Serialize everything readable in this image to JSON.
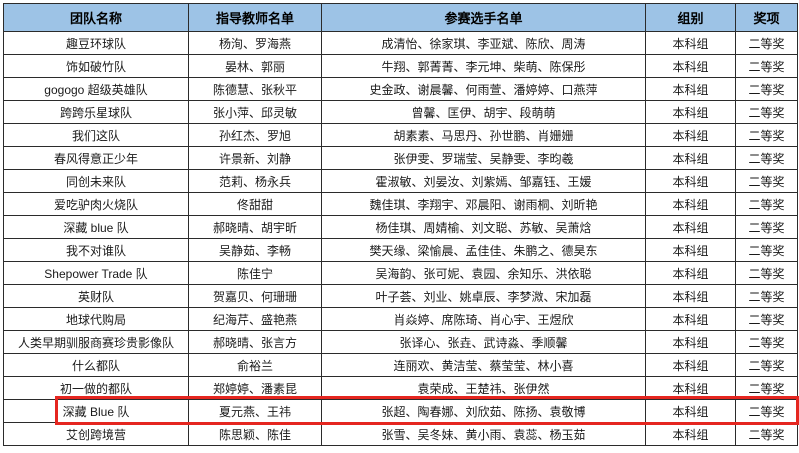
{
  "table": {
    "columns": [
      {
        "key": "team",
        "label": "团队名称"
      },
      {
        "key": "teachers",
        "label": "指导教师名单"
      },
      {
        "key": "participants",
        "label": "参赛选手名单"
      },
      {
        "key": "group",
        "label": "组别"
      },
      {
        "key": "award",
        "label": "奖项"
      }
    ],
    "rows": [
      [
        "趣豆环球队",
        "杨洵、罗海燕",
        "成清怡、徐家琪、李亚斌、陈欣、周涛",
        "本科组",
        "二等奖"
      ],
      [
        "饰如破竹队",
        "晏林、郭丽",
        "牛翔、郭菁菁、李元坤、柴萌、陈保彤",
        "本科组",
        "二等奖"
      ],
      [
        "gogogo 超级英雄队",
        "陈德慧、张秋平",
        "史金政、谢晨馨、何雨萱、潘婷婷、口燕萍",
        "本科组",
        "二等奖"
      ],
      [
        "跨跨乐星球队",
        "张小萍、邱灵敏",
        "曾馨、匡伊、胡宇、段萌萌",
        "本科组",
        "二等奖"
      ],
      [
        "我们这队",
        "孙红杰、罗旭",
        "胡素素、马思丹、孙世鹏、肖姗姗",
        "本科组",
        "二等奖"
      ],
      [
        "春风得意正少年",
        "许景新、刘静",
        "张伊雯、罗瑞莹、吴静雯、李昀羲",
        "本科组",
        "二等奖"
      ],
      [
        "同创未来队",
        "范莉、杨永兵",
        "霍淑敏、刘晏汝、刘紫嫣、邹嘉钰、王媛",
        "本科组",
        "二等奖"
      ],
      [
        "爱吃驴肉火烧队",
        "佟甜甜",
        "魏佳琪、李翔宇、邓晨阳、谢雨桐、刘昕艳",
        "本科组",
        "二等奖"
      ],
      [
        "深藏 blue 队",
        "郝晓晴、胡宇昕",
        "杨佳琪、周婧榆、刘文聪、苏敏、吴萧焓",
        "本科组",
        "二等奖"
      ],
      [
        "我不对谁队",
        "吴静茹、李畅",
        "樊天缘、梁愉晨、孟佳佳、朱鹏之、德昊东",
        "本科组",
        "二等奖"
      ],
      [
        "Shepower Trade 队",
        "陈佳宁",
        "吴海韵、张可妮、袁园、余知乐、洪依聪",
        "本科组",
        "二等奖"
      ],
      [
        "英财队",
        "贺嘉贝、何珊珊",
        "叶子荟、刘业、姚卓辰、李梦溦、宋加磊",
        "本科组",
        "二等奖"
      ],
      [
        "地球代购局",
        "纪海芹、盛艳燕",
        "肖焱婷、席陈琦、肖心宇、王煜欣",
        "本科组",
        "二等奖"
      ],
      [
        "人类早期驯服商赛珍贵影像队",
        "郝晓晴、张言方",
        "张译心、张垚、武诗淼、季顺馨",
        "本科组",
        "二等奖"
      ],
      [
        "什么都队",
        "俞裕兰",
        "连丽欢、黄洁莹、蔡莹莹、林小喜",
        "本科组",
        "二等奖"
      ],
      [
        "初一做的都队",
        "郑婷婷、潘素昆",
        "袁荣成、王楚祎、张伊然",
        "本科组",
        "二等奖"
      ],
      [
        "深藏 Blue 队",
        "夏元燕、王祎",
        "张超、陶春娜、刘欣茹、陈扬、袁敬博",
        "本科组",
        "二等奖"
      ],
      [
        "艾创跨境营",
        "陈思颖、陈佳",
        "张雪、吴冬妹、黄小雨、袁蕊、杨玉茹",
        "本科组",
        "二等奖"
      ]
    ],
    "highlighted_row_index": 16,
    "colors": {
      "header_bg": "#9DC3E6",
      "border": "#2B2B2B",
      "highlight_border": "#E52620"
    }
  }
}
